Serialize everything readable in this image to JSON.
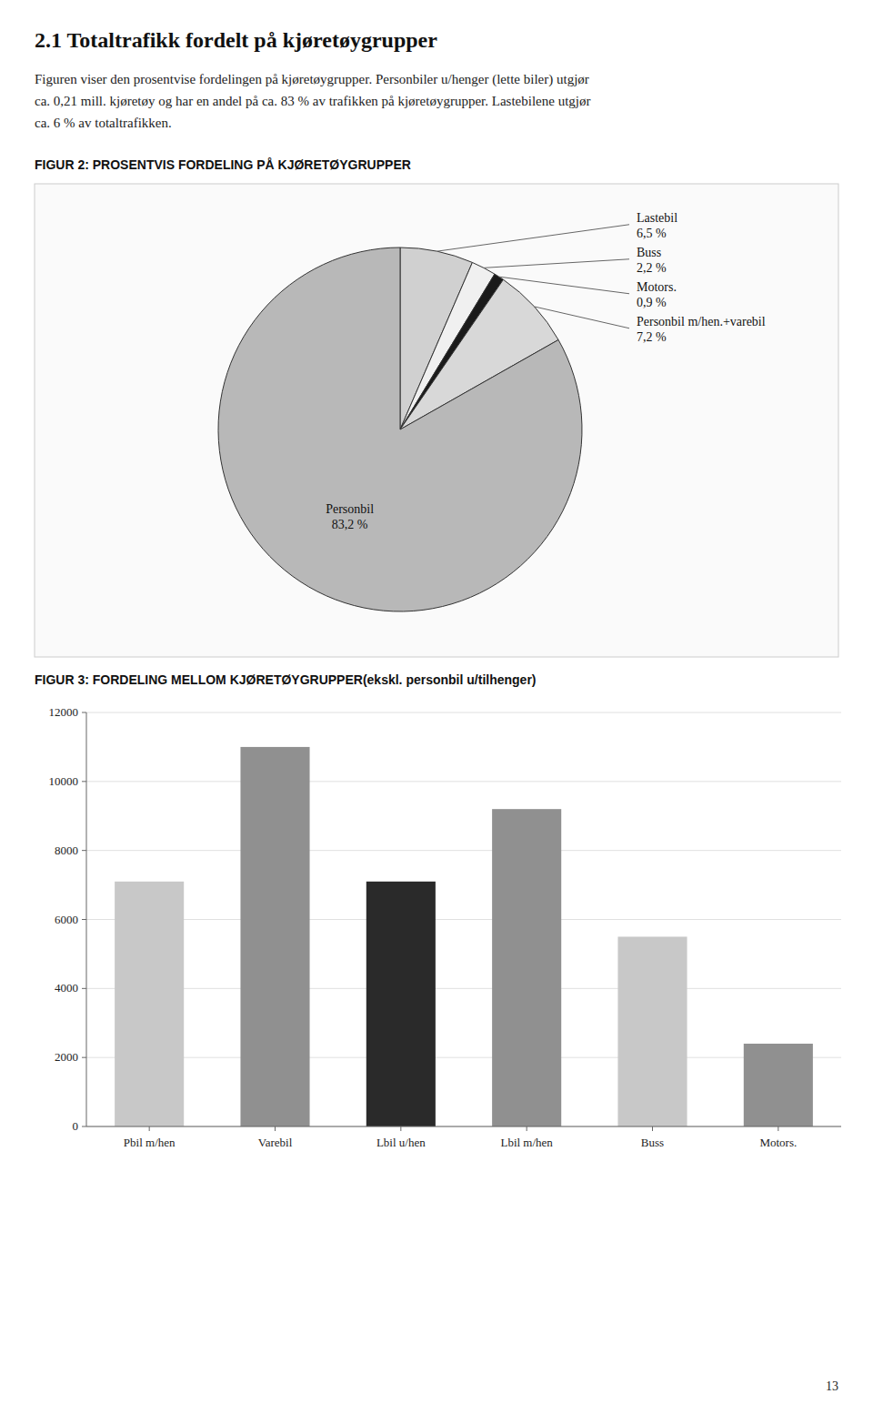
{
  "title": "2.1 Totaltrafikk fordelt på kjøretøygrupper",
  "text": [
    "Figuren viser den prosentvise fordelingen på kjøretøygrupper. Personbiler u/henger (lette biler) utgjør",
    "ca. 0,21 mill. kjøretøy og har en andel på ca. 83 % av trafikken på kjøretøygrupper. Lastebilene utgjør",
    "ca. 6 % av totaltrafikken."
  ],
  "page_number": "13",
  "chart_data": [
    {
      "type": "pie",
      "title": "FIGUR 2: PROSENTVIS FORDELING PÅ KJØRETØYGRUPPER",
      "categories": [
        "Lastebil",
        "Buss",
        "Motors.",
        "Personbil m/hen.+varebil",
        "Personbil"
      ],
      "values": [
        6.5,
        2.2,
        0.9,
        7.2,
        83.2
      ],
      "value_labels": [
        "6,5 %",
        "2,2 %",
        "0,9 %",
        "7,2 %",
        "83,2 %"
      ],
      "colors": [
        "#d0d0d0",
        "#f0f0f0",
        "#1a1a1a",
        "#d8d8d8",
        "#b8b8b8"
      ],
      "data_labels": true
    },
    {
      "type": "bar",
      "title": "FIGUR 3: FORDELING MELLOM KJØRETØYGRUPPER(ekskl. personbil u/tilhenger)",
      "categories": [
        "Pbil m/hen",
        "Varebil",
        "Lbil u/hen",
        "Lbil m/hen",
        "Buss",
        "Motors."
      ],
      "values": [
        7100,
        11000,
        7100,
        9200,
        5500,
        2400
      ],
      "colors": [
        "#c8c8c8",
        "#909090",
        "#2a2a2a",
        "#909090",
        "#c8c8c8",
        "#909090"
      ],
      "ylim": [
        0,
        12000
      ],
      "yticks": [
        0,
        2000,
        4000,
        6000,
        8000,
        10000,
        12000
      ],
      "grid": true
    }
  ]
}
